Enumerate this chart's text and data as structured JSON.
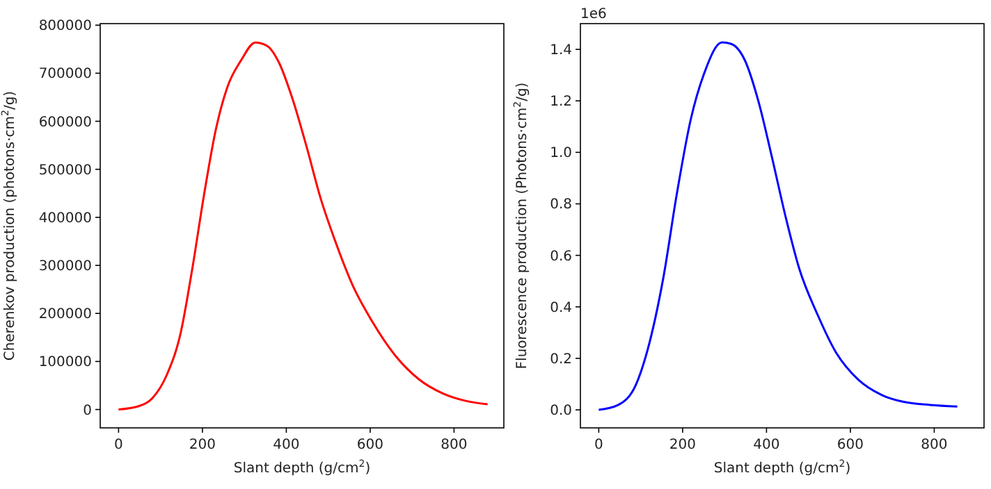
{
  "chart_data": [
    {
      "type": "line",
      "xlabel": "Slant depth (g/cm$^{2}$)",
      "ylabel": "Cherenkov production (photons·cm$^{2}$/g)",
      "xlim": [
        -43.75,
        918.75
      ],
      "ylim": [
        -38250,
        803250
      ],
      "xticks": [
        0,
        200,
        400,
        600,
        800
      ],
      "yticks": [
        0,
        100000,
        200000,
        300000,
        400000,
        500000,
        600000,
        700000,
        800000
      ],
      "grid": false,
      "marker": "none",
      "line_style": "solid",
      "series": [
        {
          "color": "#ff0000",
          "x": [
            0,
            48,
            81,
            115,
            148,
            176,
            204,
            232,
            259,
            293,
            326,
            354,
            382,
            415,
            449,
            482,
            516,
            560,
            605,
            661,
            716,
            772,
            828,
            880
          ],
          "values": [
            0,
            7000,
            24000,
            72000,
            159000,
            294000,
            448000,
            583000,
            670000,
            728000,
            764000,
            757000,
            723000,
            646000,
            545000,
            439000,
            352000,
            255000,
            183000,
            111000,
            63000,
            34000,
            18000,
            11000
          ]
        }
      ]
    },
    {
      "type": "line",
      "xlabel": "Slant depth (g/cm$^{2}$)",
      "ylabel": "Fluorescence production (Photons·cm$^{2}$/g)",
      "annotations": [
        "1e6"
      ],
      "xlim": [
        -43.75,
        918.75
      ],
      "ylim": [
        -0.07,
        1.5
      ],
      "xticks": [
        0,
        200,
        400,
        600,
        800
      ],
      "yticks": [
        {
          "value": 0,
          "label": "0.0"
        },
        0.2,
        0.4,
        0.6,
        0.8,
        {
          "value": 1,
          "label": "1.0"
        },
        1.2,
        1.4
      ],
      "grid": false,
      "marker": "none",
      "line_style": "solid",
      "series": [
        {
          "color": "#0000ff",
          "x": [
            0,
            45,
            89,
            121,
            154,
            186,
            219,
            251,
            294,
            316,
            348,
            381,
            413,
            446,
            478,
            522,
            565,
            619,
            673,
            727,
            790,
            855
          ],
          "values": [
            0,
            0.018,
            0.099,
            0.261,
            0.513,
            0.837,
            1.125,
            1.305,
            1.427,
            1.421,
            1.359,
            1.197,
            0.981,
            0.747,
            0.549,
            0.369,
            0.225,
            0.117,
            0.059,
            0.031,
            0.019,
            0.013
          ]
        }
      ]
    }
  ]
}
